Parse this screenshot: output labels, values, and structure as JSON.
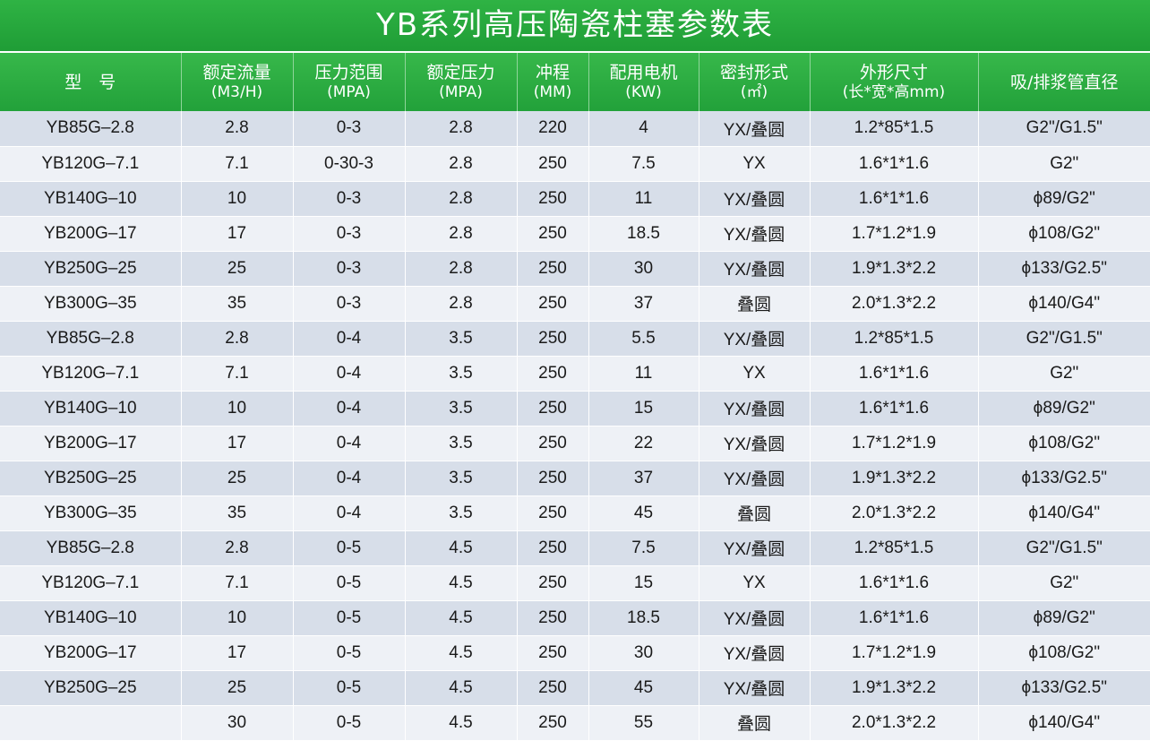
{
  "title": "YB系列高压陶瓷柱塞参数表",
  "columns": [
    {
      "label": "型　号",
      "sub": ""
    },
    {
      "label": "额定流量",
      "sub": "(M3/H)"
    },
    {
      "label": "压力范围",
      "sub": "(MPA)"
    },
    {
      "label": "额定压力",
      "sub": "(MPA)"
    },
    {
      "label": "冲程",
      "sub": "(MM)"
    },
    {
      "label": "配用电机",
      "sub": "(KW)"
    },
    {
      "label": "密封形式",
      "sub": "(㎡)"
    },
    {
      "label": "外形尺寸",
      "sub": "(长*宽*高mm)"
    },
    {
      "label": "吸/排浆管直径",
      "sub": ""
    }
  ],
  "rows": [
    [
      "YB85G–2.8",
      "2.8",
      "0-3",
      "2.8",
      "220",
      "4",
      "YX/叠圆",
      "1.2*85*1.5",
      "G2\"/G1.5\""
    ],
    [
      "YB120G–7.1",
      "7.1",
      "0-30-3",
      "2.8",
      "250",
      "7.5",
      "YX",
      "1.6*1*1.6",
      "G2\""
    ],
    [
      "YB140G–10",
      "10",
      "0-3",
      "2.8",
      "250",
      "11",
      "YX/叠圆",
      "1.6*1*1.6",
      "ϕ89/G2\""
    ],
    [
      "YB200G–17",
      "17",
      "0-3",
      "2.8",
      "250",
      "18.5",
      "YX/叠圆",
      "1.7*1.2*1.9",
      "ϕ108/G2\""
    ],
    [
      "YB250G–25",
      "25",
      "0-3",
      "2.8",
      "250",
      "30",
      "YX/叠圆",
      "1.9*1.3*2.2",
      "ϕ133/G2.5\""
    ],
    [
      "YB300G–35",
      "35",
      "0-3",
      "2.8",
      "250",
      "37",
      "叠圆",
      "2.0*1.3*2.2",
      "ϕ140/G4\""
    ],
    [
      "YB85G–2.8",
      "2.8",
      "0-4",
      "3.5",
      "250",
      "5.5",
      "YX/叠圆",
      "1.2*85*1.5",
      "G2\"/G1.5\""
    ],
    [
      "YB120G–7.1",
      "7.1",
      "0-4",
      "3.5",
      "250",
      "11",
      "YX",
      "1.6*1*1.6",
      "G2\""
    ],
    [
      "YB140G–10",
      "10",
      "0-4",
      "3.5",
      "250",
      "15",
      "YX/叠圆",
      "1.6*1*1.6",
      "ϕ89/G2\""
    ],
    [
      "YB200G–17",
      "17",
      "0-4",
      "3.5",
      "250",
      "22",
      "YX/叠圆",
      "1.7*1.2*1.9",
      "ϕ108/G2\""
    ],
    [
      "YB250G–25",
      "25",
      "0-4",
      "3.5",
      "250",
      "37",
      "YX/叠圆",
      "1.9*1.3*2.2",
      "ϕ133/G2.5\""
    ],
    [
      "YB300G–35",
      "35",
      "0-4",
      "3.5",
      "250",
      "45",
      "叠圆",
      "2.0*1.3*2.2",
      "ϕ140/G4\""
    ],
    [
      "YB85G–2.8",
      "2.8",
      "0-5",
      "4.5",
      "250",
      "7.5",
      "YX/叠圆",
      "1.2*85*1.5",
      "G2\"/G1.5\""
    ],
    [
      "YB120G–7.1",
      "7.1",
      "0-5",
      "4.5",
      "250",
      "15",
      "YX",
      "1.6*1*1.6",
      "G2\""
    ],
    [
      "YB140G–10",
      "10",
      "0-5",
      "4.5",
      "250",
      "18.5",
      "YX/叠圆",
      "1.6*1*1.6",
      "ϕ89/G2\""
    ],
    [
      "YB200G–17",
      "17",
      "0-5",
      "4.5",
      "250",
      "30",
      "YX/叠圆",
      "1.7*1.2*1.9",
      "ϕ108/G2\""
    ],
    [
      "YB250G–25",
      "25",
      "0-5",
      "4.5",
      "250",
      "45",
      "YX/叠圆",
      "1.9*1.3*2.2",
      "ϕ133/G2.5\""
    ],
    [
      "",
      "30",
      "0-5",
      "4.5",
      "250",
      "55",
      "叠圆",
      "2.0*1.3*2.2",
      "ϕ140/G4\""
    ]
  ],
  "colors": {
    "header_green": "#22a13a",
    "row_dark": "#d7dee9",
    "row_light": "#eef1f6"
  }
}
